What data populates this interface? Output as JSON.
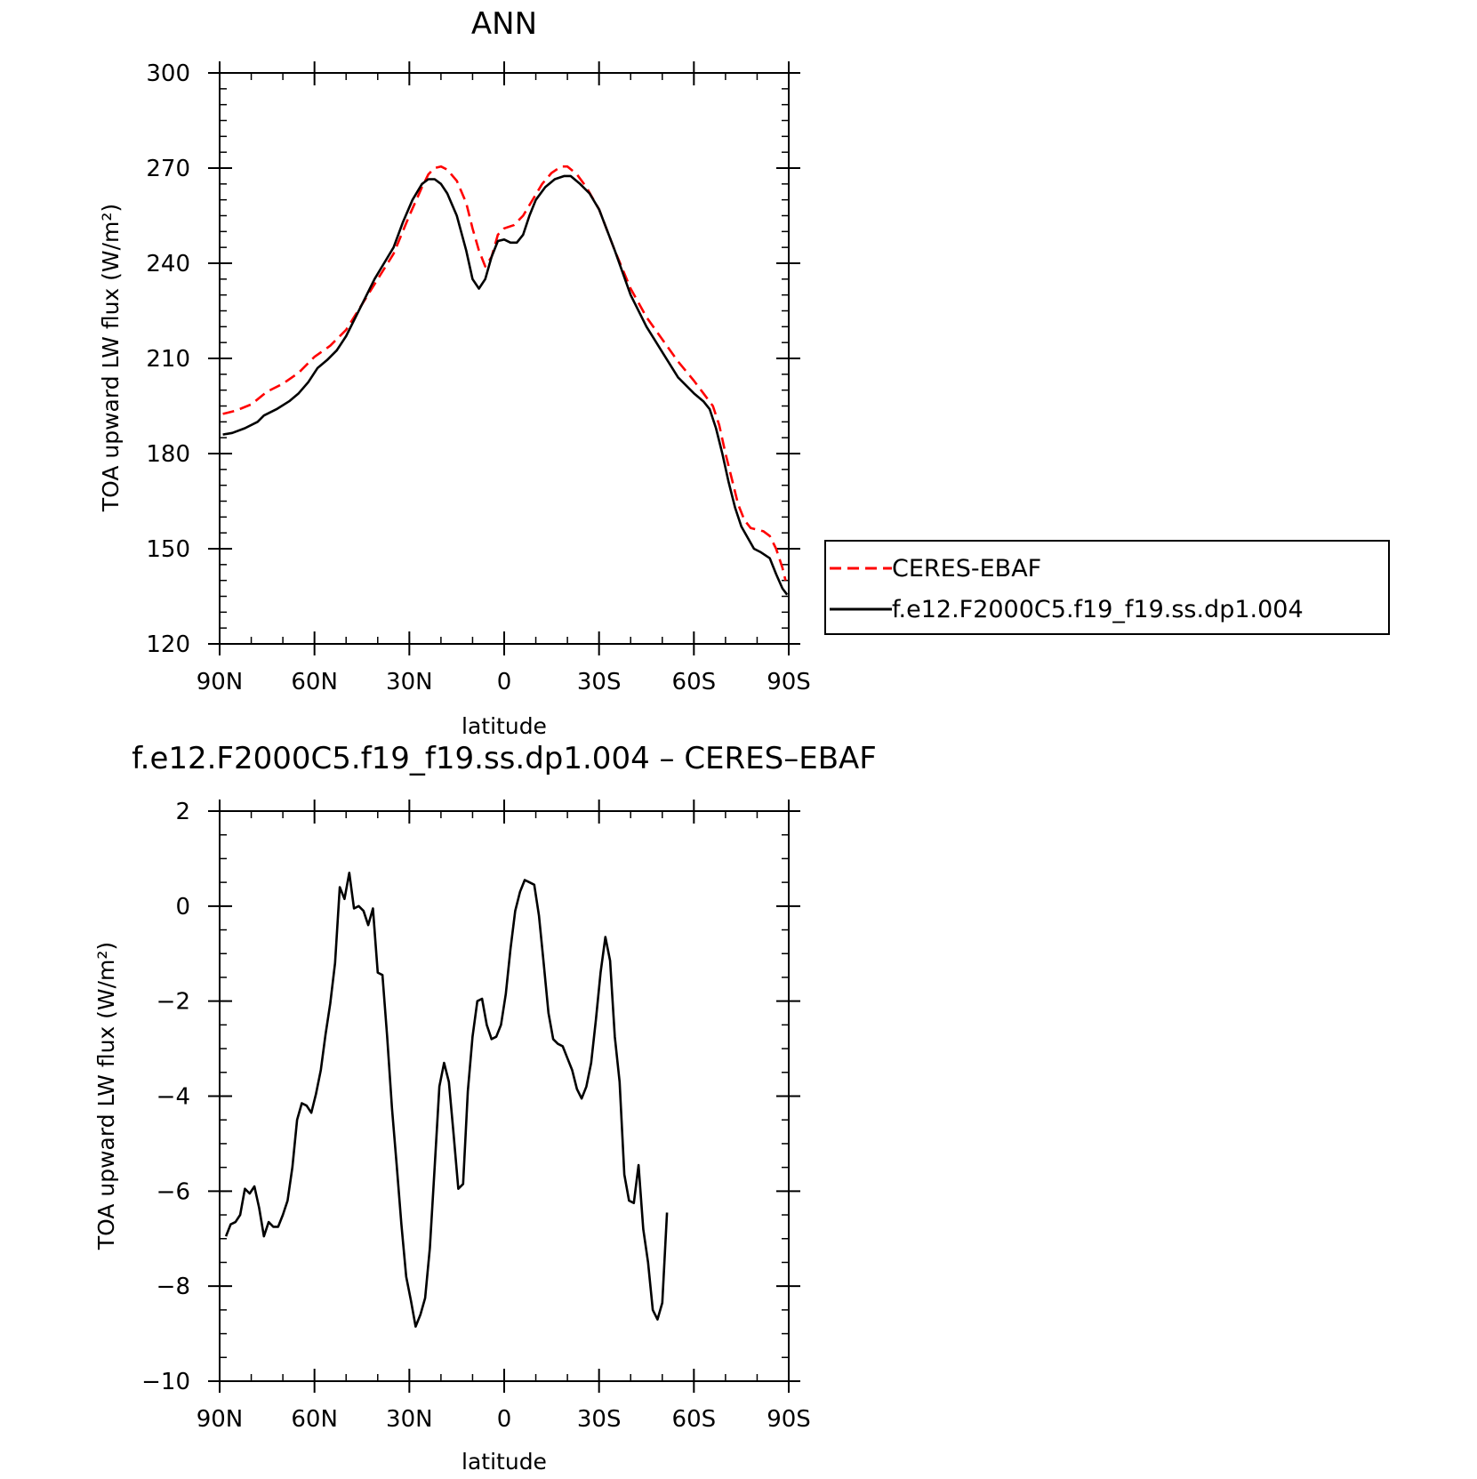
{
  "chart_data": [
    {
      "type": "line",
      "title": "ANN",
      "xlabel": "latitude",
      "ylabel": "TOA upward LW flux (W/m²)",
      "xlim": [
        90,
        -90
      ],
      "ylim": [
        120,
        300
      ],
      "x_ticks": [
        {
          "value": 90,
          "label": "90N"
        },
        {
          "value": 60,
          "label": "60N"
        },
        {
          "value": 30,
          "label": "30N"
        },
        {
          "value": 0,
          "label": "0"
        },
        {
          "value": -30,
          "label": "30S"
        },
        {
          "value": -60,
          "label": "60S"
        },
        {
          "value": -90,
          "label": "90S"
        }
      ],
      "y_ticks": [
        {
          "value": 120,
          "label": "120"
        },
        {
          "value": 150,
          "label": "150"
        },
        {
          "value": 180,
          "label": "180"
        },
        {
          "value": 210,
          "label": "210"
        },
        {
          "value": 240,
          "label": "240"
        },
        {
          "value": 270,
          "label": "270"
        },
        {
          "value": 300,
          "label": "300"
        }
      ],
      "legend_position": "right",
      "series": [
        {
          "name": "CERES-EBAF",
          "color": "#ff0000",
          "dash": "dashed",
          "points": [
            [
              89,
              192.5
            ],
            [
              85,
              193.5
            ],
            [
              80,
              195.5
            ],
            [
              75,
              199.5
            ],
            [
              70,
              202
            ],
            [
              65,
              205.5
            ],
            [
              60,
              210.5
            ],
            [
              55,
              214
            ],
            [
              50,
              219
            ],
            [
              45,
              227
            ],
            [
              40,
              235
            ],
            [
              35,
              243
            ],
            [
              30,
              255
            ],
            [
              26,
              264
            ],
            [
              24,
              268
            ],
            [
              22,
              270
            ],
            [
              20,
              270.5
            ],
            [
              18,
              269.5
            ],
            [
              15,
              266
            ],
            [
              12,
              259
            ],
            [
              10,
              251
            ],
            [
              8,
              244
            ],
            [
              6,
              239
            ],
            [
              4,
              242
            ],
            [
              2,
              249
            ],
            [
              0,
              251
            ],
            [
              -3,
              252
            ],
            [
              -6,
              255
            ],
            [
              -9,
              260
            ],
            [
              -12,
              265
            ],
            [
              -15,
              268.5
            ],
            [
              -18,
              270.5
            ],
            [
              -20,
              270.5
            ],
            [
              -23,
              268
            ],
            [
              -26,
              264
            ],
            [
              -30,
              257
            ],
            [
              -35,
              244
            ],
            [
              -40,
              232
            ],
            [
              -45,
              223
            ],
            [
              -50,
              216
            ],
            [
              -55,
              209
            ],
            [
              -60,
              203
            ],
            [
              -63,
              199
            ],
            [
              -66,
              195
            ],
            [
              -68,
              189
            ],
            [
              -70,
              180
            ],
            [
              -72,
              172
            ],
            [
              -74,
              164
            ],
            [
              -76,
              159
            ],
            [
              -78,
              156.5
            ],
            [
              -82,
              155.5
            ],
            [
              -84,
              154
            ],
            [
              -86,
              150
            ],
            [
              -88,
              144
            ],
            [
              -89,
              140
            ]
          ]
        },
        {
          "name": "f.e12.F2000C5.f19_f19.ss.dp1.004",
          "color": "#000000",
          "dash": "solid",
          "points": [
            [
              89,
              186
            ],
            [
              86,
              186.5
            ],
            [
              82,
              188
            ],
            [
              78,
              190
            ],
            [
              76,
              192
            ],
            [
              72,
              194
            ],
            [
              68,
              196.5
            ],
            [
              65,
              199
            ],
            [
              62,
              202.5
            ],
            [
              59,
              207
            ],
            [
              56,
              209.5
            ],
            [
              53,
              212.5
            ],
            [
              50,
              217
            ],
            [
              47,
              223
            ],
            [
              44,
              229
            ],
            [
              41,
              235
            ],
            [
              38,
              240
            ],
            [
              35,
              245
            ],
            [
              32,
              253
            ],
            [
              29,
              260
            ],
            [
              26,
              265
            ],
            [
              24,
              266.5
            ],
            [
              22,
              266.5
            ],
            [
              20,
              265
            ],
            [
              18,
              262
            ],
            [
              15,
              255
            ],
            [
              12,
              244
            ],
            [
              10,
              235
            ],
            [
              8,
              232
            ],
            [
              6,
              235
            ],
            [
              4,
              242
            ],
            [
              2,
              247
            ],
            [
              0,
              247.5
            ],
            [
              -2,
              246.5
            ],
            [
              -4,
              246.5
            ],
            [
              -6,
              249
            ],
            [
              -8,
              255
            ],
            [
              -10,
              260
            ],
            [
              -13,
              264
            ],
            [
              -16,
              266.5
            ],
            [
              -19,
              267.5
            ],
            [
              -21,
              267.5
            ],
            [
              -24,
              265
            ],
            [
              -27,
              262
            ],
            [
              -30,
              257
            ],
            [
              -35,
              244
            ],
            [
              -40,
              230
            ],
            [
              -45,
              220
            ],
            [
              -50,
              212
            ],
            [
              -55,
              204
            ],
            [
              -60,
              199
            ],
            [
              -63,
              196.5
            ],
            [
              -65,
              194
            ],
            [
              -67,
              188
            ],
            [
              -69,
              180
            ],
            [
              -71,
              171
            ],
            [
              -73,
              163
            ],
            [
              -75,
              157
            ],
            [
              -77,
              153.5
            ],
            [
              -79,
              150
            ],
            [
              -81,
              149
            ],
            [
              -84,
              147
            ],
            [
              -86,
              142
            ],
            [
              -88,
              137.5
            ],
            [
              -89.5,
              135.5
            ]
          ]
        }
      ]
    },
    {
      "type": "line",
      "title": "f.e12.F2000C5.f19_f19.ss.dp1.004 – CERES–EBAF",
      "xlabel": "latitude",
      "ylabel": "TOA upward LW flux (W/m²)",
      "xlim": [
        90,
        -90
      ],
      "ylim": [
        -10,
        2
      ],
      "x_ticks": [
        {
          "value": 90,
          "label": "90N"
        },
        {
          "value": 60,
          "label": "60N"
        },
        {
          "value": 30,
          "label": "30N"
        },
        {
          "value": 0,
          "label": "0"
        },
        {
          "value": -30,
          "label": "30S"
        },
        {
          "value": -60,
          "label": "60S"
        },
        {
          "value": -90,
          "label": "90S"
        }
      ],
      "y_ticks": [
        {
          "value": -10,
          "label": "−10"
        },
        {
          "value": -8,
          "label": "−8"
        },
        {
          "value": -6,
          "label": "−6"
        },
        {
          "value": -4,
          "label": "−4"
        },
        {
          "value": -2,
          "label": "−2"
        },
        {
          "value": 0,
          "label": "0"
        },
        {
          "value": 2,
          "label": "2"
        }
      ],
      "series": [
        {
          "color": "#000000",
          "dash": "solid",
          "points": [
            [
              88,
              -6.95
            ],
            [
              86.5,
              -6.7
            ],
            [
              85,
              -6.65
            ],
            [
              83.5,
              -6.5
            ],
            [
              82,
              -5.95
            ],
            [
              80.5,
              -6.05
            ],
            [
              79,
              -5.9
            ],
            [
              77.5,
              -6.35
            ],
            [
              76,
              -6.95
            ],
            [
              74.5,
              -6.65
            ],
            [
              73,
              -6.75
            ],
            [
              71.5,
              -6.75
            ],
            [
              70,
              -6.5
            ],
            [
              68.5,
              -6.2
            ],
            [
              67,
              -5.5
            ],
            [
              65.5,
              -4.5
            ],
            [
              64,
              -4.15
            ],
            [
              62.5,
              -4.2
            ],
            [
              61,
              -4.35
            ],
            [
              59.5,
              -3.95
            ],
            [
              58,
              -3.45
            ],
            [
              56.5,
              -2.7
            ],
            [
              55,
              -2.05
            ],
            [
              53.5,
              -1.2
            ],
            [
              52,
              0.4
            ],
            [
              50.5,
              0.15
            ],
            [
              49,
              0.7
            ],
            [
              47.5,
              -0.05
            ],
            [
              46,
              0
            ],
            [
              44.5,
              -0.1
            ],
            [
              43,
              -0.4
            ],
            [
              41.5,
              -0.05
            ],
            [
              40,
              -1.4
            ],
            [
              38.5,
              -1.45
            ],
            [
              37,
              -2.75
            ],
            [
              35.5,
              -4.25
            ],
            [
              34,
              -5.45
            ],
            [
              32.5,
              -6.7
            ],
            [
              31,
              -7.8
            ],
            [
              29.5,
              -8.3
            ],
            [
              28,
              -8.85
            ],
            [
              26.5,
              -8.6
            ],
            [
              25,
              -8.25
            ],
            [
              23.5,
              -7.2
            ],
            [
              22,
              -5.5
            ],
            [
              20.5,
              -3.8
            ],
            [
              19,
              -3.3
            ],
            [
              17.5,
              -3.7
            ],
            [
              16,
              -4.8
            ],
            [
              14.5,
              -5.95
            ],
            [
              13,
              -5.85
            ],
            [
              11.5,
              -3.9
            ],
            [
              10,
              -2.75
            ],
            [
              8.5,
              -2.0
            ],
            [
              7,
              -1.95
            ],
            [
              5.5,
              -2.5
            ],
            [
              4,
              -2.8
            ],
            [
              2.5,
              -2.75
            ],
            [
              1,
              -2.5
            ],
            [
              -0.5,
              -1.85
            ],
            [
              -2,
              -0.9
            ],
            [
              -3.5,
              -0.1
            ],
            [
              -5,
              0.3
            ],
            [
              -6.5,
              0.55
            ],
            [
              -8,
              0.5
            ],
            [
              -9.5,
              0.45
            ],
            [
              -11,
              -0.2
            ],
            [
              -12.5,
              -1.2
            ],
            [
              -14,
              -2.25
            ],
            [
              -15.5,
              -2.8
            ],
            [
              -17,
              -2.9
            ],
            [
              -18.5,
              -2.95
            ],
            [
              -20,
              -3.2
            ],
            [
              -21.5,
              -3.45
            ],
            [
              -23,
              -3.85
            ],
            [
              -24.5,
              -4.05
            ],
            [
              -26,
              -3.8
            ],
            [
              -27.5,
              -3.3
            ],
            [
              -29,
              -2.4
            ],
            [
              -30.5,
              -1.4
            ],
            [
              -32,
              -0.65
            ],
            [
              -33.5,
              -1.15
            ],
            [
              -35,
              -2.75
            ],
            [
              -36.5,
              -3.7
            ],
            [
              -38,
              -5.65
            ],
            [
              -39.5,
              -6.2
            ],
            [
              -41,
              -6.25
            ],
            [
              -42.5,
              -5.45
            ],
            [
              -44,
              -6.8
            ],
            [
              -45.5,
              -7.5
            ],
            [
              -47,
              -8.5
            ],
            [
              -48.5,
              -8.7
            ],
            [
              -50,
              -8.35
            ],
            [
              -51.5,
              -6.45
            ]
          ]
        }
      ]
    }
  ]
}
